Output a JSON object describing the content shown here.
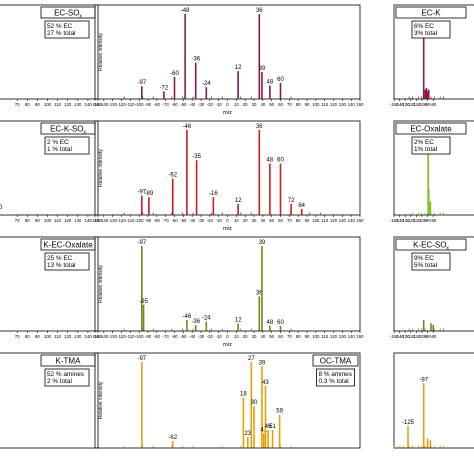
{
  "colors": {
    "maroon": "#8b1a4a",
    "red": "#c81e1e",
    "olive": "#6e8a1e",
    "green": "#7cbf1e",
    "orange": "#e8a000"
  },
  "axis_xlabel": "m/z",
  "axis_ylabel": "Relative intensity",
  "chart_data": [
    {
      "type": "bar",
      "row": 0,
      "col": 0,
      "title": "EC-SO",
      "title_sub": "x",
      "lines": [
        "52 % EC",
        "27 % total"
      ],
      "color": "#8b1a4a",
      "xlim": [
        50,
        150
      ],
      "xticks": [
        "70",
        "80",
        "90",
        "100",
        "110",
        "120",
        "130",
        "140",
        "150"
      ],
      "peaks": [],
      "peak_labels": []
    },
    {
      "type": "bar",
      "row": 0,
      "col": 1,
      "title": "",
      "title_sub": "",
      "lines": [],
      "color": "#8b1a4a",
      "xlim": [
        -150,
        150
      ],
      "xticks": [
        "-150",
        "-140",
        "-130",
        "-120",
        "-110",
        "-100",
        "-90",
        "-80",
        "-70",
        "-60",
        "-50",
        "-40",
        "-30",
        "-20",
        "-10",
        "0",
        "10",
        "20",
        "30",
        "40",
        "50",
        "60",
        "70",
        "80",
        "90",
        "100",
        "110",
        "120",
        "130",
        "140",
        "150"
      ],
      "peaks": [
        [
          -97,
          0.14
        ],
        [
          -72,
          0.08
        ],
        [
          -60,
          0.25
        ],
        [
          -48,
          1.0
        ],
        [
          -36,
          0.42
        ],
        [
          -24,
          0.13
        ],
        [
          12,
          0.32
        ],
        [
          36,
          1.0
        ],
        [
          39,
          0.31
        ],
        [
          48,
          0.15
        ],
        [
          60,
          0.18
        ]
      ],
      "peak_labels": [
        "-97",
        "-72",
        "-60",
        "-48",
        "-36",
        "-24",
        "12",
        "36",
        "39",
        "48",
        "60"
      ]
    },
    {
      "type": "bar",
      "row": 0,
      "col": 2,
      "title": "EC-K",
      "title_sub": "",
      "lines": [
        "6% EC",
        "3% total"
      ],
      "color": "#8b1a4a",
      "xlim": [
        -150,
        0
      ],
      "xticks": [
        "-150",
        "-140",
        "-130",
        "-120",
        "-110",
        "-100",
        "-90",
        "-80"
      ],
      "peaks": [
        [
          -97,
          0.75
        ],
        [
          -94,
          0.1
        ],
        [
          -92,
          0.12
        ],
        [
          -90,
          0.08
        ],
        [
          -88,
          0.1
        ]
      ],
      "peak_labels": [
        "-97"
      ]
    },
    {
      "type": "bar",
      "row": 1,
      "col": 0,
      "title": "EC-K-SO",
      "title_sub": "x",
      "lines": [
        "2 % EC",
        "1 % total"
      ],
      "color": "#c81e1e",
      "xlim": [
        50,
        150
      ],
      "xticks": [
        "70",
        "80",
        "90",
        "100",
        "110",
        "120",
        "130",
        "140",
        "150"
      ],
      "peaks": [],
      "peak_labels": [
        "0"
      ]
    },
    {
      "type": "bar",
      "row": 1,
      "col": 1,
      "title": "",
      "title_sub": "",
      "lines": [],
      "color": "#c81e1e",
      "xlim": [
        -150,
        150
      ],
      "xticks": [
        "-150",
        "-140",
        "-130",
        "-120",
        "-110",
        "-100",
        "-90",
        "-80",
        "-70",
        "-60",
        "-50",
        "-40",
        "-30",
        "-20",
        "-10",
        "0",
        "10",
        "20",
        "30",
        "40",
        "50",
        "60",
        "70",
        "80",
        "90",
        "100",
        "110",
        "120",
        "130",
        "140",
        "150"
      ],
      "peaks": [
        [
          -97,
          0.22
        ],
        [
          -89,
          0.2
        ],
        [
          -62,
          0.42
        ],
        [
          -46,
          1.0
        ],
        [
          -35,
          0.64
        ],
        [
          -16,
          0.2
        ],
        [
          12,
          0.12
        ],
        [
          36,
          1.0
        ],
        [
          48,
          0.6
        ],
        [
          60,
          0.6
        ],
        [
          72,
          0.12
        ],
        [
          84,
          0.06
        ]
      ],
      "peak_labels": [
        "-97",
        "-89",
        "-62",
        "-46",
        "-35",
        "-16",
        "12",
        "36",
        "48",
        "60",
        "72",
        "84"
      ]
    },
    {
      "type": "bar",
      "row": 1,
      "col": 2,
      "title": "EC-Oxalate",
      "title_sub": "",
      "lines": [
        "2% EC",
        "1% total"
      ],
      "color": "#7cbf1e",
      "xlim": [
        -150,
        0
      ],
      "xticks": [
        "-150",
        "-140",
        "-130",
        "-120",
        "-110",
        "-100",
        "-90",
        "-80"
      ],
      "peaks": [
        [
          -89,
          0.85
        ],
        [
          -88,
          0.3
        ],
        [
          -85,
          0.15
        ]
      ],
      "peak_labels": []
    },
    {
      "type": "bar",
      "row": 2,
      "col": 0,
      "title": "K-EC-Oxalate",
      "title_sub": "",
      "lines": [
        "25 % EC",
        "13 % total"
      ],
      "color": "#6e8a1e",
      "xlim": [
        50,
        150
      ],
      "xticks": [
        "70",
        "80",
        "90",
        "100",
        "110",
        "120",
        "130",
        "140",
        "150"
      ],
      "peaks": [],
      "peak_labels": []
    },
    {
      "type": "bar",
      "row": 2,
      "col": 1,
      "title": "",
      "title_sub": "",
      "lines": [],
      "color": "#6e8a1e",
      "xlim": [
        -150,
        150
      ],
      "xticks": [
        "-150",
        "-140",
        "-130",
        "-120",
        "-110",
        "-100",
        "-90",
        "-80",
        "-70",
        "-60",
        "-50",
        "-40",
        "-30",
        "-20",
        "-10",
        "0",
        "10",
        "20",
        "30",
        "40",
        "50",
        "60",
        "70",
        "80",
        "90",
        "100",
        "110",
        "120",
        "130",
        "140",
        "150"
      ],
      "peaks": [
        [
          -97,
          1.0
        ],
        [
          -95,
          0.3
        ],
        [
          -46,
          0.12
        ],
        [
          -36,
          0.06
        ],
        [
          -24,
          0.1
        ],
        [
          12,
          0.08
        ],
        [
          36,
          0.4
        ],
        [
          39,
          1.0
        ],
        [
          48,
          0.05
        ],
        [
          60,
          0.05
        ]
      ],
      "peak_labels": [
        "-97",
        "-95",
        "-46",
        "-36",
        "-24",
        "12",
        "36",
        "39",
        "48",
        "60"
      ]
    },
    {
      "type": "bar",
      "row": 2,
      "col": 2,
      "title": "K-EC-SO",
      "title_sub": "x",
      "lines": [
        "9% EC",
        "5% total"
      ],
      "color": "#6e8a1e",
      "xlim": [
        -150,
        0
      ],
      "xticks": [
        "-150",
        "-140",
        "-130",
        "-120",
        "-110",
        "-100",
        "-90",
        "-80"
      ],
      "peaks": [
        [
          -97,
          0.12
        ],
        [
          -84,
          0.08
        ],
        [
          -80,
          0.06
        ]
      ],
      "peak_labels": []
    },
    {
      "type": "bar",
      "row": 3,
      "col": 0,
      "title": "K-TMA",
      "title_sub": "",
      "lines": [
        "52 % amines",
        "2 % total"
      ],
      "color": "#8b1a4a",
      "xlim": [
        50,
        150
      ],
      "xticks": [],
      "peaks": [],
      "peak_labels": []
    },
    {
      "type": "bar",
      "row": 3,
      "col": 1,
      "title": "OC-TMA",
      "title_sub": "",
      "lines": [
        "8 % amines",
        "0.3 % total"
      ],
      "color": "#e8a000",
      "xlim": [
        -150,
        150
      ],
      "xticks": [],
      "peaks": [
        [
          -97,
          1.0
        ],
        [
          -62,
          0.07
        ],
        [
          18,
          0.58
        ],
        [
          23,
          0.12
        ],
        [
          27,
          1.0
        ],
        [
          30,
          0.48
        ],
        [
          39,
          0.95
        ],
        [
          41,
          0.16
        ],
        [
          43,
          0.72
        ],
        [
          46,
          0.2
        ],
        [
          51,
          0.2
        ],
        [
          59,
          0.38
        ]
      ],
      "peak_labels": [
        "-97",
        "-62",
        "18",
        "23",
        "27",
        "30",
        "39",
        "41",
        "43",
        "46",
        "51",
        "59"
      ]
    },
    {
      "type": "bar",
      "row": 3,
      "col": 2,
      "title": "",
      "title_sub": "",
      "lines": [],
      "color": "#e8a000",
      "xlim": [
        -150,
        0
      ],
      "xticks": [],
      "peaks": [
        [
          -125,
          0.25
        ],
        [
          -97,
          0.75
        ],
        [
          -90,
          0.1
        ],
        [
          -85,
          0.08
        ]
      ],
      "peak_labels": [
        "-125",
        "-97"
      ]
    }
  ]
}
